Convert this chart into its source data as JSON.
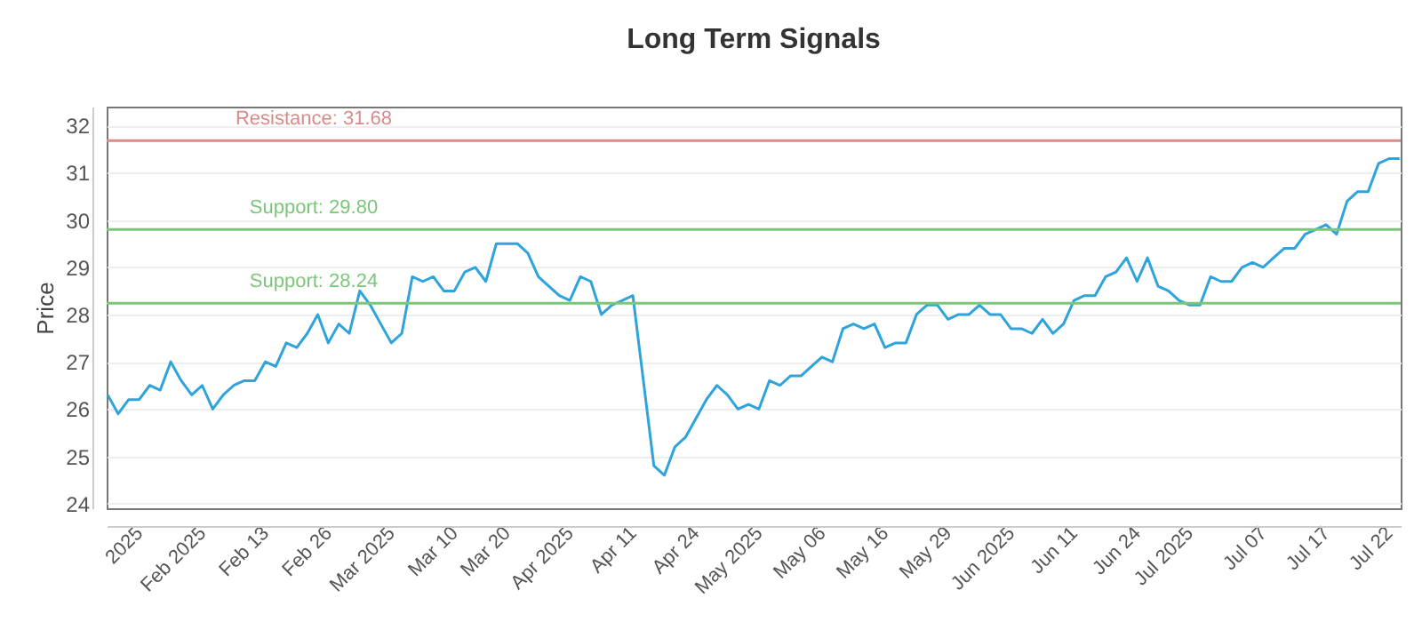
{
  "chart_data": {
    "type": "line",
    "title": "Long Term Signals",
    "ylabel": "Price",
    "categories": [
      null,
      null,
      null,
      "2025",
      null,
      null,
      null,
      null,
      null,
      "Feb 2025",
      null,
      null,
      null,
      null,
      null,
      "Feb 13",
      null,
      null,
      null,
      null,
      null,
      "Feb 26",
      null,
      null,
      null,
      null,
      null,
      "Mar 2025",
      null,
      null,
      null,
      null,
      null,
      "Mar 10",
      null,
      null,
      null,
      null,
      "Mar 20",
      null,
      null,
      null,
      null,
      null,
      "Apr 2025",
      null,
      null,
      null,
      null,
      null,
      "Apr 11",
      null,
      null,
      null,
      null,
      null,
      "Apr 24",
      null,
      null,
      null,
      null,
      null,
      "May 2025",
      null,
      null,
      null,
      null,
      null,
      "May 06",
      null,
      null,
      null,
      null,
      null,
      "May 16",
      null,
      null,
      null,
      null,
      null,
      "May 29",
      null,
      null,
      null,
      null,
      null,
      "Jun 2025",
      null,
      null,
      null,
      null,
      null,
      "Jun 11",
      null,
      null,
      null,
      null,
      null,
      "Jun 24",
      null,
      null,
      null,
      null,
      "Jul 2025",
      null,
      null,
      null,
      null,
      null,
      null,
      "Jul 07",
      null,
      null,
      null,
      null,
      null,
      "Jul 17",
      null,
      null,
      null,
      null,
      null,
      "Jul 22",
      null
    ],
    "series": [
      {
        "color": "#2ea3dc",
        "values": [
          26.3,
          25.9,
          26.2,
          26.2,
          26.5,
          26.4,
          27.0,
          26.6,
          26.3,
          26.5,
          26.0,
          26.3,
          26.5,
          26.6,
          26.6,
          27.0,
          26.9,
          27.4,
          27.3,
          27.6,
          28.0,
          27.4,
          27.8,
          27.6,
          28.5,
          28.2,
          27.8,
          27.4,
          27.6,
          28.8,
          28.7,
          28.8,
          28.5,
          28.5,
          28.9,
          29.0,
          28.7,
          29.5,
          29.5,
          29.5,
          29.3,
          28.8,
          28.6,
          28.4,
          28.3,
          28.8,
          28.7,
          28.0,
          28.2,
          28.3,
          28.4,
          26.6,
          24.8,
          24.6,
          25.2,
          25.4,
          25.8,
          26.2,
          26.5,
          26.3,
          26.0,
          26.1,
          26.0,
          26.6,
          26.5,
          26.7,
          26.7,
          26.9,
          27.1,
          27.0,
          27.7,
          27.8,
          27.7,
          27.8,
          27.3,
          27.4,
          27.4,
          28.0,
          28.2,
          28.2,
          27.9,
          28.0,
          28.0,
          28.2,
          28.0,
          28.0,
          27.7,
          27.7,
          27.6,
          27.9,
          27.6,
          27.8,
          28.3,
          28.4,
          28.4,
          28.8,
          28.9,
          29.2,
          28.7,
          29.2,
          28.6,
          28.5,
          28.3,
          28.2,
          28.2,
          28.8,
          28.7,
          28.7,
          29.0,
          29.1,
          29.0,
          29.2,
          29.4,
          29.4,
          29.7,
          29.8,
          29.9,
          29.7,
          30.4,
          30.6,
          30.6,
          31.2,
          31.3,
          31.3
        ]
      }
    ],
    "ylim": [
      23.9,
      32.4
    ],
    "yticks": [
      24,
      25,
      26,
      27,
      28,
      29,
      30,
      31,
      32
    ],
    "grid": "y",
    "ref_lines": [
      {
        "axis": "y",
        "value": 31.68,
        "label": "Resistance: 31.68",
        "color": "#d98a8a"
      },
      {
        "axis": "y",
        "value": 29.8,
        "label": "Support: 29.80",
        "color": "#7cc67a"
      },
      {
        "axis": "y",
        "value": 28.24,
        "label": "Support: 28.24",
        "color": "#7cc67a"
      }
    ]
  }
}
